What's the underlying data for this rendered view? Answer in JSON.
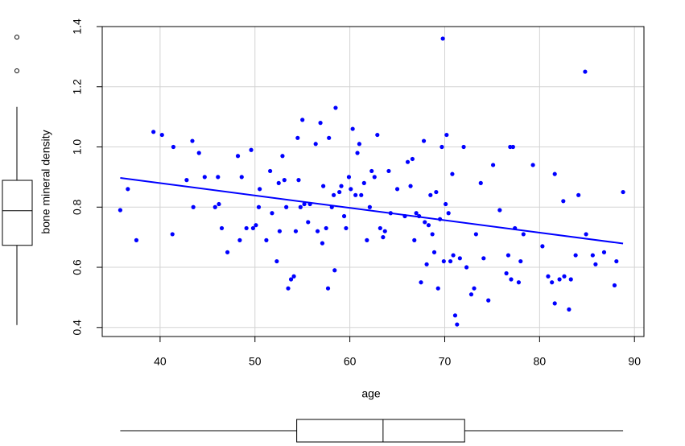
{
  "chart_data": {
    "type": "scatter",
    "x_label": "age",
    "y_label": "bone mineral density",
    "color": "#0000ff",
    "grid": true,
    "xlim": [
      33.9,
      91.0
    ],
    "ylim": [
      0.37,
      1.4
    ],
    "xticks": [
      40,
      50,
      60,
      70,
      80,
      90
    ],
    "yticks": [
      0.4,
      0.6,
      0.8,
      {
        "value": 1,
        "label": "1.0"
      },
      1.2,
      1.4
    ],
    "x": [
      35.8,
      36.6,
      37.5,
      39.3,
      40.2,
      41.3,
      41.4,
      42.8,
      43.4,
      43.5,
      44.1,
      44.7,
      45.8,
      46.1,
      46.2,
      46.5,
      47.1,
      48.2,
      48.4,
      48.6,
      49.1,
      49.6,
      49.8,
      50.1,
      50.5,
      50.4,
      51.2,
      51.6,
      51.8,
      52.3,
      52.5,
      52.9,
      52.6,
      53.1,
      53.3,
      53.5,
      53.8,
      54.1,
      54.3,
      54.5,
      54.6,
      54.8,
      55.0,
      55.2,
      55.6,
      55.8,
      56.4,
      56.6,
      56.9,
      57.1,
      57.2,
      57.5,
      57.7,
      57.8,
      58.1,
      58.3,
      58.5,
      58.4,
      58.9,
      59.1,
      59.4,
      59.6,
      59.9,
      60.1,
      60.3,
      60.6,
      60.8,
      61.0,
      61.2,
      61.5,
      61.8,
      62.1,
      62.3,
      62.6,
      62.9,
      63.2,
      63.5,
      63.7,
      64.1,
      64.3,
      65.0,
      65.8,
      66.1,
      66.4,
      66.6,
      66.8,
      67.0,
      67.3,
      67.5,
      67.8,
      67.9,
      68.1,
      68.3,
      68.5,
      68.7,
      68.9,
      69.1,
      69.3,
      69.5,
      69.7,
      69.8,
      69.9,
      70.1,
      70.2,
      70.4,
      70.6,
      70.8,
      70.9,
      71.1,
      71.3,
      71.6,
      72.0,
      72.3,
      72.8,
      73.1,
      73.3,
      73.8,
      74.1,
      74.6,
      75.1,
      75.8,
      76.5,
      76.7,
      76.9,
      77.0,
      77.2,
      77.4,
      77.8,
      78.0,
      78.3,
      79.3,
      80.3,
      80.9,
      81.3,
      81.6,
      81.6,
      82.1,
      82.5,
      82.6,
      83.1,
      83.3,
      83.8,
      84.1,
      84.8,
      84.9,
      85.6,
      85.9,
      86.8,
      87.9,
      88.1,
      88.8
    ],
    "values": [
      0.79,
      0.86,
      0.69,
      1.05,
      1.04,
      0.71,
      1.0,
      0.89,
      1.02,
      0.8,
      0.98,
      0.9,
      0.8,
      0.9,
      0.81,
      0.73,
      0.65,
      0.97,
      0.69,
      0.9,
      0.73,
      0.99,
      0.73,
      0.74,
      0.86,
      0.8,
      0.69,
      0.92,
      0.78,
      0.62,
      0.88,
      0.97,
      0.72,
      0.89,
      0.8,
      0.53,
      0.56,
      0.57,
      0.72,
      1.03,
      0.89,
      0.8,
      1.09,
      0.81,
      0.75,
      0.81,
      1.01,
      0.72,
      1.08,
      0.68,
      0.87,
      0.73,
      0.53,
      1.03,
      0.8,
      0.84,
      1.13,
      0.59,
      0.85,
      0.87,
      0.77,
      0.73,
      0.9,
      0.86,
      1.06,
      0.84,
      0.98,
      1.01,
      0.84,
      0.88,
      0.69,
      0.8,
      0.92,
      0.9,
      1.04,
      0.73,
      0.7,
      0.72,
      0.92,
      0.78,
      0.86,
      0.77,
      0.95,
      0.87,
      0.96,
      0.69,
      0.78,
      0.77,
      0.55,
      1.02,
      0.75,
      0.61,
      0.74,
      0.84,
      0.71,
      0.65,
      0.85,
      0.53,
      0.76,
      1.0,
      1.36,
      0.62,
      0.81,
      1.04,
      0.78,
      0.62,
      0.91,
      0.64,
      0.44,
      0.41,
      0.63,
      1.0,
      0.6,
      0.51,
      0.53,
      0.71,
      0.88,
      0.63,
      0.49,
      0.94,
      0.79,
      0.58,
      0.64,
      1.0,
      0.56,
      1.0,
      0.73,
      0.55,
      0.62,
      0.71,
      0.94,
      0.67,
      0.57,
      0.55,
      0.48,
      0.91,
      0.56,
      0.82,
      0.57,
      0.46,
      0.56,
      0.64,
      0.84,
      1.25,
      0.71,
      0.64,
      0.61,
      0.65,
      0.54,
      0.62,
      0.85
    ],
    "regression": {
      "x": [
        35.8,
        88.8
      ],
      "values": [
        0.897,
        0.679
      ]
    },
    "y_boxplot": {
      "whisker_low": 0.408,
      "q1": 0.673,
      "median": 0.788,
      "q3": 0.889,
      "whisker_high": 1.133,
      "outliers": [
        1.253,
        1.365
      ]
    },
    "x_boxplot": {
      "whisker_low": 35.8,
      "q1": 54.4,
      "median": 63.5,
      "q3": 72.1,
      "whisker_high": 88.8
    }
  }
}
